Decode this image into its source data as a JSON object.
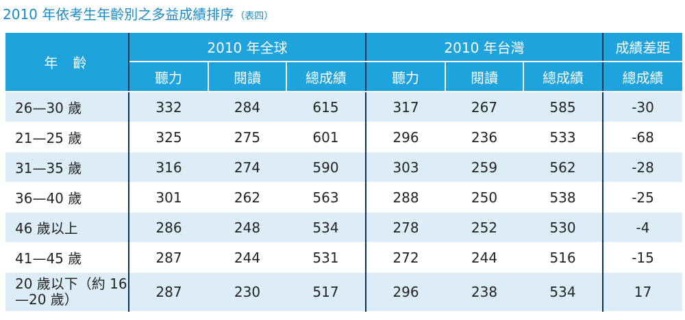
{
  "title": {
    "main": "2010 年依考生年齡別之多益成績排序",
    "sub": "（表四）"
  },
  "table": {
    "age_header": "年齡",
    "groups": [
      "2010 年全球",
      "2010 年台灣",
      "成績差距"
    ],
    "subheaders": [
      "聽力",
      "閱讀",
      "總成績",
      "聽力",
      "閱讀",
      "總成績",
      "總成績"
    ],
    "rows": [
      {
        "age": "26—30 歲",
        "values": [
          "332",
          "284",
          "615",
          "317",
          "267",
          "585",
          "-30"
        ]
      },
      {
        "age": "21—25 歲",
        "values": [
          "325",
          "275",
          "601",
          "296",
          "236",
          "533",
          "-68"
        ]
      },
      {
        "age": "31—35 歲",
        "values": [
          "316",
          "274",
          "590",
          "303",
          "259",
          "562",
          "-28"
        ]
      },
      {
        "age": "36—40 歲",
        "values": [
          "301",
          "262",
          "563",
          "288",
          "250",
          "538",
          "-25"
        ]
      },
      {
        "age": "46 歲以上",
        "values": [
          "286",
          "248",
          "534",
          "278",
          "252",
          "530",
          "-4"
        ]
      },
      {
        "age": "41—45 歲",
        "values": [
          "287",
          "244",
          "531",
          "272",
          "244",
          "516",
          "-15"
        ]
      },
      {
        "age": "20 歲以下（約 16—20 歲）",
        "values": [
          "287",
          "230",
          "517",
          "296",
          "238",
          "534",
          "17"
        ]
      }
    ]
  },
  "colors": {
    "title": "#1a8bc9",
    "header_bg": "#1fa3dc",
    "header_text": "#ffffff",
    "row_stripe": "#dcedf8",
    "divider": "#0b2f4f"
  }
}
